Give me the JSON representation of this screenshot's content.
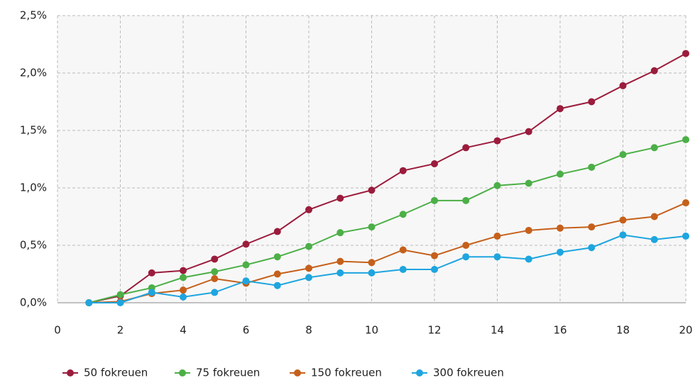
{
  "chart_data": {
    "type": "line",
    "x": [
      1,
      2,
      3,
      4,
      5,
      6,
      7,
      8,
      9,
      10,
      11,
      12,
      13,
      14,
      15,
      16,
      17,
      18,
      19,
      20
    ],
    "series": [
      {
        "name": "50 fokreuen",
        "color": "#9b1c3c",
        "values": [
          0,
          0.06,
          0.26,
          0.28,
          0.38,
          0.51,
          0.62,
          0.81,
          0.91,
          0.98,
          1.15,
          1.21,
          1.35,
          1.41,
          1.49,
          1.69,
          1.75,
          1.89,
          2.02,
          2.17
        ]
      },
      {
        "name": "75 fokreuen",
        "color": "#4caf47",
        "values": [
          0,
          0.07,
          0.13,
          0.22,
          0.27,
          0.33,
          0.4,
          0.49,
          0.61,
          0.66,
          0.77,
          0.89,
          0.89,
          1.02,
          1.04,
          1.12,
          1.18,
          1.29,
          1.35,
          1.42
        ]
      },
      {
        "name": "150 fokreuen",
        "color": "#c5601b",
        "values": [
          0,
          0.01,
          0.08,
          0.11,
          0.21,
          0.17,
          0.25,
          0.3,
          0.36,
          0.35,
          0.46,
          0.41,
          0.5,
          0.58,
          0.63,
          0.65,
          0.66,
          0.72,
          0.75,
          0.87
        ]
      },
      {
        "name": "300 fokreuen",
        "color": "#1ea5df",
        "values": [
          0,
          0,
          0.09,
          0.05,
          0.09,
          0.19,
          0.15,
          0.22,
          0.26,
          0.26,
          0.29,
          0.29,
          0.4,
          0.4,
          0.38,
          0.44,
          0.48,
          0.59,
          0.55,
          0.58
        ]
      }
    ],
    "xlim": [
      0,
      20
    ],
    "xticks": [
      0,
      2,
      4,
      6,
      8,
      10,
      12,
      14,
      16,
      18,
      20
    ],
    "ylim": [
      0,
      2.5
    ],
    "yticks": [
      {
        "value": 0,
        "label": "0,0%"
      },
      {
        "value": 0.5,
        "label": "0,5%"
      },
      {
        "value": 1,
        "label": "1,0%"
      },
      {
        "value": 1.5,
        "label": "1,5%"
      },
      {
        "value": 2,
        "label": "2,0%"
      },
      {
        "value": 2.5,
        "label": "2,5%"
      }
    ],
    "grid": true,
    "legend": "bottom"
  }
}
